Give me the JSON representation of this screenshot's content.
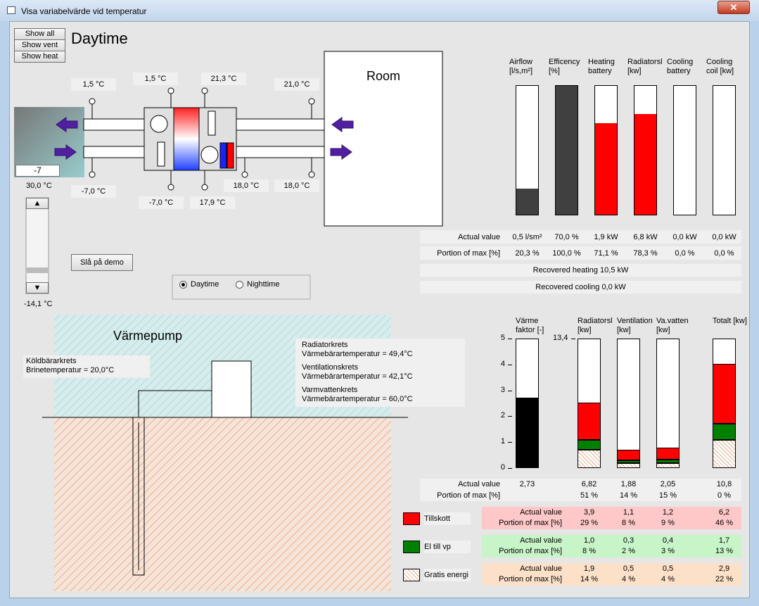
{
  "window": {
    "title": "Visa variabelvärde vid temperatur"
  },
  "buttons": [
    "Show all",
    "Show vent",
    "Show heat"
  ],
  "mode_title": "Daytime",
  "ventilation": {
    "room": "Room",
    "temps": [
      "1,5 °C",
      "1,5 °C",
      "21,3 °C",
      "21,0 °C",
      "-7,0 °C",
      "-7,0 °C",
      "17,9 °C",
      "18,0 °C",
      "18,0 °C"
    ],
    "outdoor_input": "-7",
    "slider_max": "30,0 °C",
    "slider_min": "-14,1 °C"
  },
  "demo_button": "Slå på demo",
  "radios": [
    "Daytime",
    "Nighttime"
  ],
  "gauges": {
    "headers": [
      "Airflow [l/s,m²]",
      "Efficency [%]",
      "Heating battery [kw]",
      "Radiatorsl [kw]",
      "Cooling battery [kw]",
      "Cooling coil [kw]"
    ],
    "colors": [
      "#404040",
      "#404040",
      "#ff0000",
      "#ff0000",
      "#404040",
      "#404040"
    ],
    "actual_label": "Actual value",
    "portion_label": "Portion of max [%]",
    "actual": [
      "0,5 l/sm²",
      "70,0 %",
      "1,9 kW",
      "6,8 kW",
      "0,0 kW",
      "0,0 kW"
    ],
    "portion": [
      20.3,
      100,
      71.1,
      78.3,
      0,
      0
    ],
    "portion_labels": [
      "20,3 %",
      "100,0 %",
      "71,1 %",
      "78,3 %",
      "0,0 %",
      "0,0 %"
    ],
    "recovered": [
      "Recovered heating 10,5 kW",
      "Recovered cooling 0,0 kW"
    ]
  },
  "heatpump": {
    "title": "Värmepump",
    "brine": [
      "Köldbärarkrets",
      "Brinetemperatur = 20,0°C"
    ],
    "circuits": [
      {
        "name": "Radiatorkrets",
        "temp": "Värmebärartemperatur = 49,4°C"
      },
      {
        "name": "Ventilationskrets",
        "temp": "Värmebärartemperatur = 42,1°C"
      },
      {
        "name": "Varmvattenkrets",
        "temp": "Värmebärartemperatur = 60,0°C"
      }
    ]
  },
  "energy": {
    "cop_header": "Värme faktor [-]",
    "headers": [
      "Radiatorsl [kw]",
      "Ventilation [kw]",
      "Va.vatten [kw]",
      "Totalt [kw]"
    ],
    "ylim": [
      0,
      5
    ],
    "yticks": [
      0,
      1,
      2,
      3,
      4,
      5
    ],
    "kw_max": {
      "value": 13.4,
      "label": "13,4"
    },
    "cop": 2.73,
    "cop_label": "2,73",
    "cop_color": "#000000",
    "actual_label": "Actual value",
    "portion_label": "Portion of max [%]",
    "totals": [
      "6,82",
      "1,88",
      "2,05",
      "10,8"
    ],
    "totals_portion": [
      "51 %",
      "14 %",
      "15 %",
      "0 %"
    ],
    "series": [
      {
        "name": "Tillskott",
        "color": "#ff0000",
        "values": [
          3.9,
          1.1,
          1.2,
          6.2
        ],
        "value_labels": [
          "3,9",
          "1,1",
          "1,2",
          "6,2"
        ],
        "portion_labels": [
          "29 %",
          "8 %",
          "9 %",
          "46 %"
        ]
      },
      {
        "name": "El till vp",
        "color": "#008000",
        "values": [
          1.0,
          0.3,
          0.4,
          1.7
        ],
        "value_labels": [
          "1,0",
          "0,3",
          "0,4",
          "1,7"
        ],
        "portion_labels": [
          "8 %",
          "2 %",
          "3 %",
          "13 %"
        ]
      },
      {
        "name": "Gratis energi",
        "color": "#e8b090",
        "values": [
          1.9,
          0.5,
          0.5,
          2.9
        ],
        "value_labels": [
          "1,9",
          "0,5",
          "0,5",
          "2,9"
        ],
        "portion_labels": [
          "14 %",
          "4 %",
          "4 %",
          "22 %"
        ]
      }
    ]
  }
}
